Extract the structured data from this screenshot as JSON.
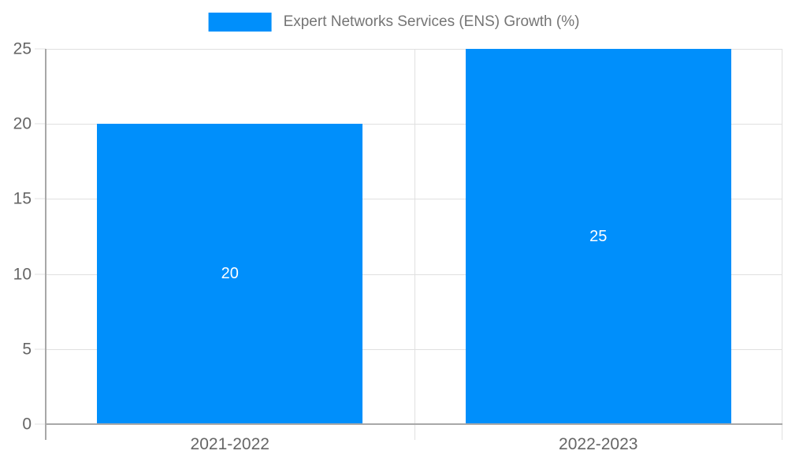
{
  "chart_data": {
    "type": "bar",
    "title": "",
    "categories": [
      "2021-2022",
      "2022-2023"
    ],
    "series": [
      {
        "name": "Expert Networks Services (ENS) Growth (%)",
        "values": [
          20,
          25
        ]
      }
    ],
    "data_labels": [
      "20",
      "25"
    ],
    "ylim": [
      0,
      25
    ],
    "yticks": [
      0,
      5,
      10,
      15,
      20,
      25
    ],
    "grid": true,
    "legend_position": "top",
    "bar_width_fraction": 0.72,
    "colors": {
      "bar": "#008FFB",
      "grid": "#e0e0e0",
      "axis": "#a8a8a8",
      "tick_label": "#666666",
      "legend_text": "#757575",
      "data_label": "#ffffff",
      "background": "#ffffff"
    }
  }
}
